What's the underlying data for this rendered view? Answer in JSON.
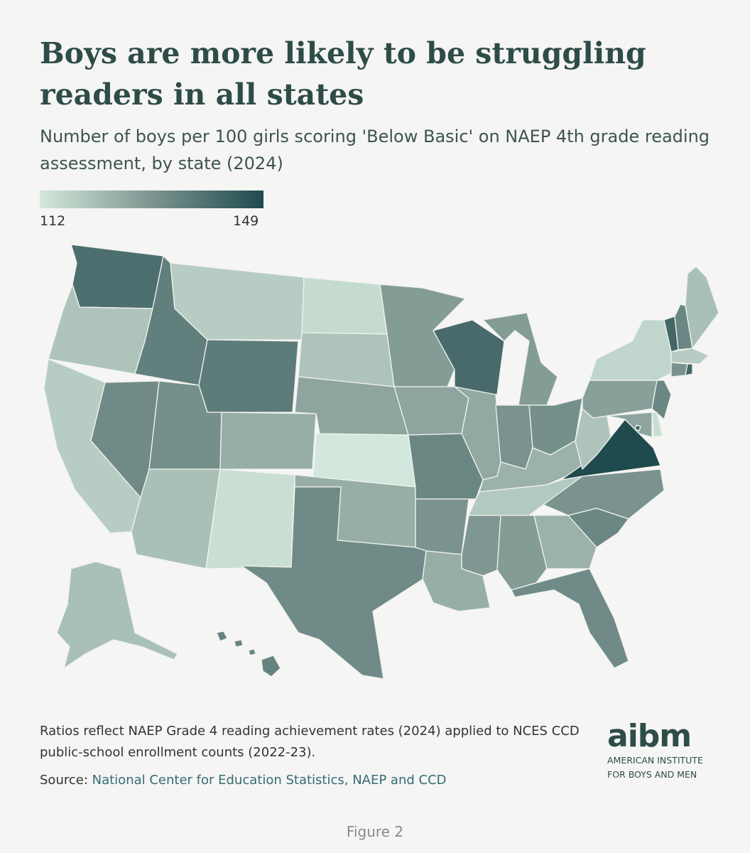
{
  "title": "Boys are more likely to be struggling readers in all states",
  "subtitle": "Number of boys per 100 girls scoring 'Below Basic' on NAEP 4th grade reading assessment, by state (2024)",
  "legend": {
    "min_label": "112",
    "max_label": "149",
    "min": 112,
    "max": 149,
    "color_low": "#d3e8dc",
    "color_mid": "#7d9590",
    "color_high": "#1f4a4e"
  },
  "notes": "Ratios reflect NAEP Grade 4 reading achievement rates (2024) applied to NCES CCD public-school enrollment counts (2022-23).",
  "source": {
    "label": "Source:",
    "text": "National Center for Education Statistics, NAEP and CCD"
  },
  "logo": {
    "mark": "aibm",
    "line1": "AMERICAN INSTITUTE",
    "line2": "FOR BOYS AND MEN"
  },
  "figure_caption": "Figure 2",
  "map_data": {
    "type": "choropleth",
    "states": [
      {
        "id": "WA",
        "value": 140
      },
      {
        "id": "OR",
        "value": 120
      },
      {
        "id": "CA",
        "value": 118
      },
      {
        "id": "ID",
        "value": 136
      },
      {
        "id": "NV",
        "value": 133
      },
      {
        "id": "MT",
        "value": 118
      },
      {
        "id": "WY",
        "value": 137
      },
      {
        "id": "UT",
        "value": 132
      },
      {
        "id": "AZ",
        "value": 121
      },
      {
        "id": "CO",
        "value": 125
      },
      {
        "id": "NM",
        "value": 114
      },
      {
        "id": "ND",
        "value": 115
      },
      {
        "id": "SD",
        "value": 120
      },
      {
        "id": "NE",
        "value": 127
      },
      {
        "id": "KS",
        "value": 112
      },
      {
        "id": "OK",
        "value": 125
      },
      {
        "id": "TX",
        "value": 133
      },
      {
        "id": "MN",
        "value": 129
      },
      {
        "id": "IA",
        "value": 127
      },
      {
        "id": "MO",
        "value": 134
      },
      {
        "id": "AR",
        "value": 131
      },
      {
        "id": "LA",
        "value": 125
      },
      {
        "id": "WI",
        "value": 141
      },
      {
        "id": "IL",
        "value": 126
      },
      {
        "id": "MI",
        "value": 129
      },
      {
        "id": "IN",
        "value": 131
      },
      {
        "id": "OH",
        "value": 132
      },
      {
        "id": "KY",
        "value": 124
      },
      {
        "id": "TN",
        "value": 119
      },
      {
        "id": "MS",
        "value": 130
      },
      {
        "id": "AL",
        "value": 129
      },
      {
        "id": "GA",
        "value": 124
      },
      {
        "id": "FL",
        "value": 133
      },
      {
        "id": "SC",
        "value": 134
      },
      {
        "id": "NC",
        "value": 131
      },
      {
        "id": "VA",
        "value": 149
      },
      {
        "id": "WV",
        "value": 120
      },
      {
        "id": "PA",
        "value": 128
      },
      {
        "id": "NY",
        "value": 116
      },
      {
        "id": "VT",
        "value": 142
      },
      {
        "id": "NH",
        "value": 134
      },
      {
        "id": "ME",
        "value": 121
      },
      {
        "id": "MA",
        "value": 118
      },
      {
        "id": "CT",
        "value": 131
      },
      {
        "id": "RI",
        "value": 142
      },
      {
        "id": "NJ",
        "value": 134
      },
      {
        "id": "DE",
        "value": 114
      },
      {
        "id": "MD",
        "value": 127
      },
      {
        "id": "DC",
        "value": 141
      },
      {
        "id": "AK",
        "value": 121
      },
      {
        "id": "HI",
        "value": 135
      }
    ]
  }
}
